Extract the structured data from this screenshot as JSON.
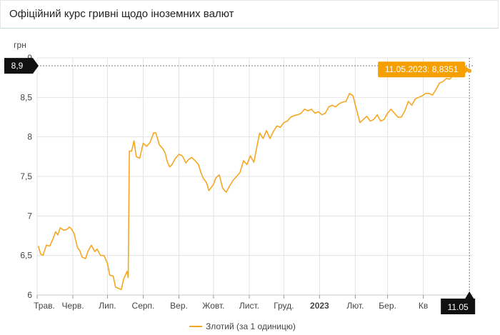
{
  "header": {
    "title": "Офіційний курс гривні щодо іноземних валют"
  },
  "chart_data": {
    "type": "line",
    "title": "Офіційний курс гривні щодо іноземних валют",
    "ylabel": "грн",
    "ylim": [
      6,
      9
    ],
    "yticks": [
      {
        "value": 6,
        "label": "6"
      },
      {
        "value": 6.5,
        "label": "6,5"
      },
      {
        "value": 7,
        "label": "7"
      },
      {
        "value": 7.5,
        "label": "7,5"
      },
      {
        "value": 8,
        "label": "8"
      },
      {
        "value": 8.5,
        "label": "8,5"
      },
      {
        "value": 9,
        "label": "9"
      }
    ],
    "xrange": [
      "2022-05-01",
      "2023-05-14"
    ],
    "xticks": [
      {
        "date": "2022-05-01",
        "label": "Трав."
      },
      {
        "date": "2022-06-01",
        "label": "Черв."
      },
      {
        "date": "2022-07-01",
        "label": "Лип."
      },
      {
        "date": "2022-08-01",
        "label": "Серп."
      },
      {
        "date": "2022-09-01",
        "label": "Вер."
      },
      {
        "date": "2022-10-01",
        "label": "Жовт."
      },
      {
        "date": "2022-11-01",
        "label": "Лист."
      },
      {
        "date": "2022-12-01",
        "label": "Груд."
      },
      {
        "date": "2023-01-01",
        "label": "2023",
        "bold": true
      },
      {
        "date": "2023-02-01",
        "label": "Лют."
      },
      {
        "date": "2023-03-01",
        "label": "Бер."
      },
      {
        "date": "2023-04-01",
        "label": "Кв"
      }
    ],
    "grid": true,
    "legend_position": "bottom",
    "series": [
      {
        "name": "Злотий (за 1 одиницю)",
        "color": "#f5a623",
        "points": [
          [
            "2022-05-02",
            6.62
          ],
          [
            "2022-05-04",
            6.52
          ],
          [
            "2022-05-06",
            6.5
          ],
          [
            "2022-05-09",
            6.63
          ],
          [
            "2022-05-12",
            6.62
          ],
          [
            "2022-05-15",
            6.72
          ],
          [
            "2022-05-17",
            6.8
          ],
          [
            "2022-05-19",
            6.76
          ],
          [
            "2022-05-21",
            6.85
          ],
          [
            "2022-05-24",
            6.82
          ],
          [
            "2022-05-27",
            6.83
          ],
          [
            "2022-05-29",
            6.86
          ],
          [
            "2022-05-31",
            6.83
          ],
          [
            "2022-06-02",
            6.78
          ],
          [
            "2022-06-05",
            6.6
          ],
          [
            "2022-06-07",
            6.56
          ],
          [
            "2022-06-09",
            6.48
          ],
          [
            "2022-06-12",
            6.46
          ],
          [
            "2022-06-14",
            6.55
          ],
          [
            "2022-06-17",
            6.63
          ],
          [
            "2022-06-20",
            6.55
          ],
          [
            "2022-06-22",
            6.58
          ],
          [
            "2022-06-25",
            6.5
          ],
          [
            "2022-06-28",
            6.5
          ],
          [
            "2022-07-01",
            6.4
          ],
          [
            "2022-07-03",
            6.25
          ],
          [
            "2022-07-06",
            6.24
          ],
          [
            "2022-07-08",
            6.1
          ],
          [
            "2022-07-11",
            6.08
          ],
          [
            "2022-07-13",
            6.07
          ],
          [
            "2022-07-15",
            6.2
          ],
          [
            "2022-07-18",
            6.3
          ],
          [
            "2022-07-19",
            6.22
          ],
          [
            "2022-07-20",
            7.82
          ],
          [
            "2022-07-22",
            7.82
          ],
          [
            "2022-07-24",
            7.95
          ],
          [
            "2022-07-26",
            7.75
          ],
          [
            "2022-07-29",
            7.73
          ],
          [
            "2022-08-01",
            7.92
          ],
          [
            "2022-08-04",
            7.88
          ],
          [
            "2022-08-07",
            7.93
          ],
          [
            "2022-08-10",
            8.05
          ],
          [
            "2022-08-12",
            8.05
          ],
          [
            "2022-08-15",
            7.9
          ],
          [
            "2022-08-18",
            7.85
          ],
          [
            "2022-08-20",
            7.8
          ],
          [
            "2022-08-22",
            7.68
          ],
          [
            "2022-08-24",
            7.62
          ],
          [
            "2022-08-26",
            7.65
          ],
          [
            "2022-08-29",
            7.73
          ],
          [
            "2022-09-01",
            7.78
          ],
          [
            "2022-09-04",
            7.76
          ],
          [
            "2022-09-07",
            7.67
          ],
          [
            "2022-09-09",
            7.71
          ],
          [
            "2022-09-12",
            7.74
          ],
          [
            "2022-09-15",
            7.7
          ],
          [
            "2022-09-18",
            7.65
          ],
          [
            "2022-09-20",
            7.55
          ],
          [
            "2022-09-22",
            7.48
          ],
          [
            "2022-09-25",
            7.42
          ],
          [
            "2022-09-27",
            7.32
          ],
          [
            "2022-09-29",
            7.36
          ],
          [
            "2022-10-01",
            7.4
          ],
          [
            "2022-10-03",
            7.48
          ],
          [
            "2022-10-06",
            7.52
          ],
          [
            "2022-10-09",
            7.35
          ],
          [
            "2022-10-12",
            7.3
          ],
          [
            "2022-10-15",
            7.38
          ],
          [
            "2022-10-18",
            7.45
          ],
          [
            "2022-10-21",
            7.5
          ],
          [
            "2022-10-24",
            7.55
          ],
          [
            "2022-10-27",
            7.7
          ],
          [
            "2022-10-30",
            7.65
          ],
          [
            "2022-11-02",
            7.76
          ],
          [
            "2022-11-05",
            7.68
          ],
          [
            "2022-11-08",
            7.9
          ],
          [
            "2022-11-10",
            8.05
          ],
          [
            "2022-11-13",
            7.98
          ],
          [
            "2022-11-16",
            8.08
          ],
          [
            "2022-11-19",
            7.98
          ],
          [
            "2022-11-22",
            8.07
          ],
          [
            "2022-11-25",
            8.14
          ],
          [
            "2022-11-28",
            8.12
          ],
          [
            "2022-12-01",
            8.18
          ],
          [
            "2022-12-04",
            8.2
          ],
          [
            "2022-12-07",
            8.25
          ],
          [
            "2022-12-10",
            8.27
          ],
          [
            "2022-12-13",
            8.28
          ],
          [
            "2022-12-16",
            8.3
          ],
          [
            "2022-12-19",
            8.35
          ],
          [
            "2022-12-22",
            8.33
          ],
          [
            "2022-12-25",
            8.35
          ],
          [
            "2022-12-28",
            8.3
          ],
          [
            "2022-12-31",
            8.32
          ],
          [
            "2023-01-03",
            8.28
          ],
          [
            "2023-01-06",
            8.3
          ],
          [
            "2023-01-09",
            8.38
          ],
          [
            "2023-01-12",
            8.4
          ],
          [
            "2023-01-15",
            8.38
          ],
          [
            "2023-01-18",
            8.42
          ],
          [
            "2023-01-21",
            8.44
          ],
          [
            "2023-01-24",
            8.45
          ],
          [
            "2023-01-27",
            8.55
          ],
          [
            "2023-01-30",
            8.52
          ],
          [
            "2023-02-02",
            8.35
          ],
          [
            "2023-02-05",
            8.18
          ],
          [
            "2023-02-08",
            8.22
          ],
          [
            "2023-02-11",
            8.26
          ],
          [
            "2023-02-14",
            8.2
          ],
          [
            "2023-02-17",
            8.22
          ],
          [
            "2023-02-20",
            8.28
          ],
          [
            "2023-02-23",
            8.2
          ],
          [
            "2023-02-26",
            8.22
          ],
          [
            "2023-03-01",
            8.3
          ],
          [
            "2023-03-04",
            8.35
          ],
          [
            "2023-03-07",
            8.3
          ],
          [
            "2023-03-10",
            8.25
          ],
          [
            "2023-03-13",
            8.25
          ],
          [
            "2023-03-16",
            8.33
          ],
          [
            "2023-03-19",
            8.45
          ],
          [
            "2023-03-22",
            8.4
          ],
          [
            "2023-03-25",
            8.48
          ],
          [
            "2023-03-28",
            8.5
          ],
          [
            "2023-03-31",
            8.52
          ],
          [
            "2023-04-03",
            8.55
          ],
          [
            "2023-04-06",
            8.55
          ],
          [
            "2023-04-09",
            8.53
          ],
          [
            "2023-04-12",
            8.6
          ],
          [
            "2023-04-15",
            8.68
          ],
          [
            "2023-04-18",
            8.7
          ],
          [
            "2023-04-21",
            8.74
          ],
          [
            "2023-04-24",
            8.73
          ],
          [
            "2023-04-27",
            8.78
          ],
          [
            "2023-04-30",
            8.82
          ],
          [
            "2023-05-03",
            8.82
          ],
          [
            "2023-05-06",
            8.8
          ],
          [
            "2023-05-09",
            8.83
          ],
          [
            "2023-05-11",
            8.8351
          ]
        ]
      }
    ],
    "annotations": {
      "tooltip_text": "11.05.2023: 8,8351",
      "crosshair_y_label": "8,9",
      "crosshair_y_value": 8.9,
      "crosshair_x_label": "11.05",
      "crosshair_x_date": "2023-05-11"
    }
  }
}
